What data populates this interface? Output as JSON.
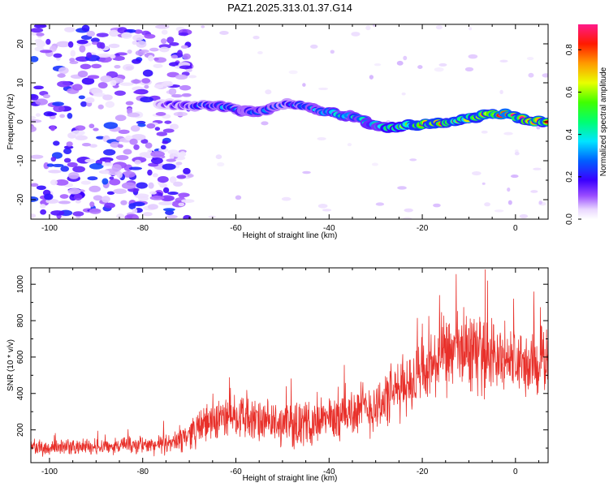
{
  "title": "PAZ1.2025.313.01.37.G14",
  "chart_data": [
    {
      "type": "heatmap",
      "xlabel": "Height of straight line (km)",
      "ylabel": "Frequency (Hz)",
      "xlim": [
        -104,
        7
      ],
      "ylim": [
        -25,
        25
      ],
      "xticks": [
        -100,
        -80,
        -60,
        -40,
        -20,
        0
      ],
      "yticks": [
        -20,
        -10,
        0,
        10,
        20
      ],
      "colorbar": {
        "label": "Normalized spectral amplitude",
        "range": [
          0,
          0.92
        ],
        "ticks": [
          0.0,
          0.2,
          0.4,
          0.6,
          0.8
        ]
      },
      "ridge": {
        "description_units": "km / Hz",
        "x": [
          -76,
          -70,
          -66,
          -62,
          -58,
          -54,
          -50,
          -46,
          -42,
          -38,
          -34,
          -30,
          -26,
          -22,
          -18,
          -14,
          -10,
          -6,
          -2,
          2,
          6
        ],
        "y": [
          4.5,
          4.0,
          4.2,
          3.8,
          2.5,
          3.0,
          4.5,
          4.0,
          3.0,
          2.0,
          1.0,
          -1.0,
          -1.5,
          -0.8,
          -0.5,
          0.0,
          1.0,
          2.0,
          2.0,
          0.5,
          0.0
        ],
        "amplitude": [
          0.15,
          0.22,
          0.3,
          0.35,
          0.3,
          0.35,
          0.28,
          0.32,
          0.38,
          0.42,
          0.45,
          0.5,
          0.62,
          0.72,
          0.82,
          0.75,
          0.7,
          0.8,
          0.88,
          0.85,
          0.78
        ]
      },
      "noise_region_x": [
        -104,
        -70
      ]
    },
    {
      "type": "line",
      "xlabel": "Height of straight line (km)",
      "ylabel": "SNR (10 * v/v)",
      "xlim": [
        -104,
        7
      ],
      "ylim": [
        20,
        1090
      ],
      "xticks": [
        -100,
        -80,
        -60,
        -40,
        -20,
        0
      ],
      "yticks": [
        200,
        400,
        600,
        800,
        1000
      ],
      "color": "#e8302a",
      "trend": {
        "x": [
          -104,
          -90,
          -80,
          -74,
          -70,
          -66,
          -60,
          -55,
          -50,
          -45,
          -40,
          -35,
          -30,
          -25,
          -20,
          -15,
          -10,
          -5,
          0,
          3,
          7
        ],
        "mean": [
          100,
          110,
          115,
          120,
          180,
          240,
          290,
          240,
          230,
          230,
          260,
          300,
          330,
          420,
          500,
          610,
          640,
          600,
          580,
          540,
          600
        ],
        "spread": [
          40,
          45,
          50,
          55,
          85,
          110,
          130,
          120,
          120,
          120,
          130,
          150,
          160,
          170,
          190,
          220,
          230,
          200,
          190,
          180,
          200
        ]
      },
      "peak": {
        "x": -6.5,
        "y": 1080
      }
    }
  ]
}
